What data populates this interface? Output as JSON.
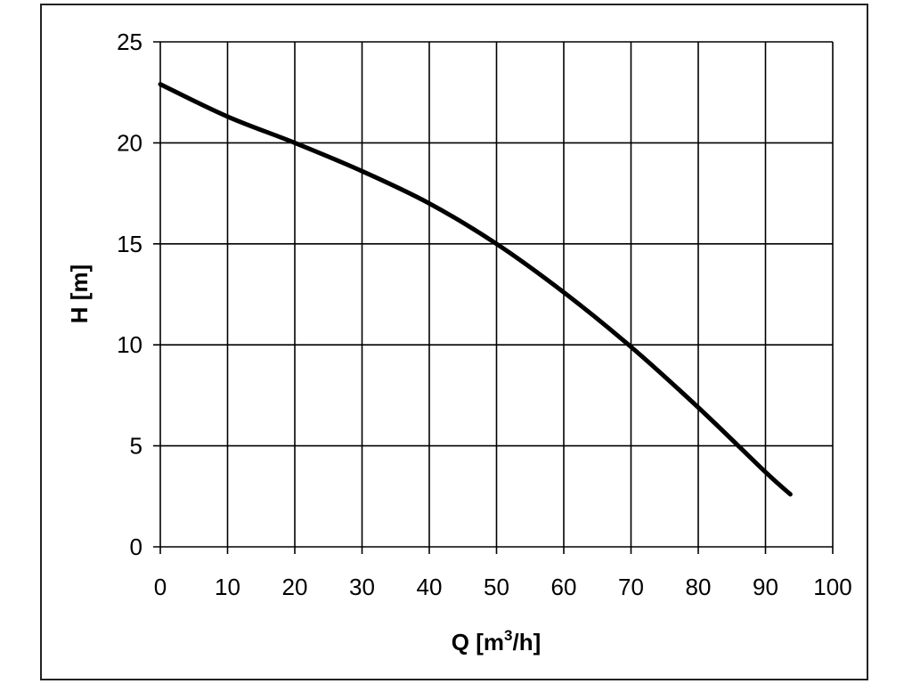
{
  "chart_data": {
    "type": "line",
    "title": "",
    "xlabel": "Q [m",
    "xlabel_sup": "3",
    "xlabel_tail": "/h]",
    "ylabel": "H [m]",
    "xlim": [
      0,
      100
    ],
    "ylim": [
      0,
      25
    ],
    "x_ticks": [
      0,
      10,
      20,
      30,
      40,
      50,
      60,
      70,
      80,
      90,
      100
    ],
    "y_ticks": [
      0,
      5,
      10,
      15,
      20,
      25
    ],
    "grid": true,
    "series": [
      {
        "x": [
          0,
          10,
          20,
          30,
          40,
          50,
          60,
          70,
          80,
          90,
          93.7
        ],
        "y": [
          22.9,
          21.3,
          20.0,
          18.6,
          17.0,
          15.0,
          12.6,
          9.9,
          6.9,
          3.7,
          2.6
        ],
        "color": "#000000"
      }
    ]
  }
}
